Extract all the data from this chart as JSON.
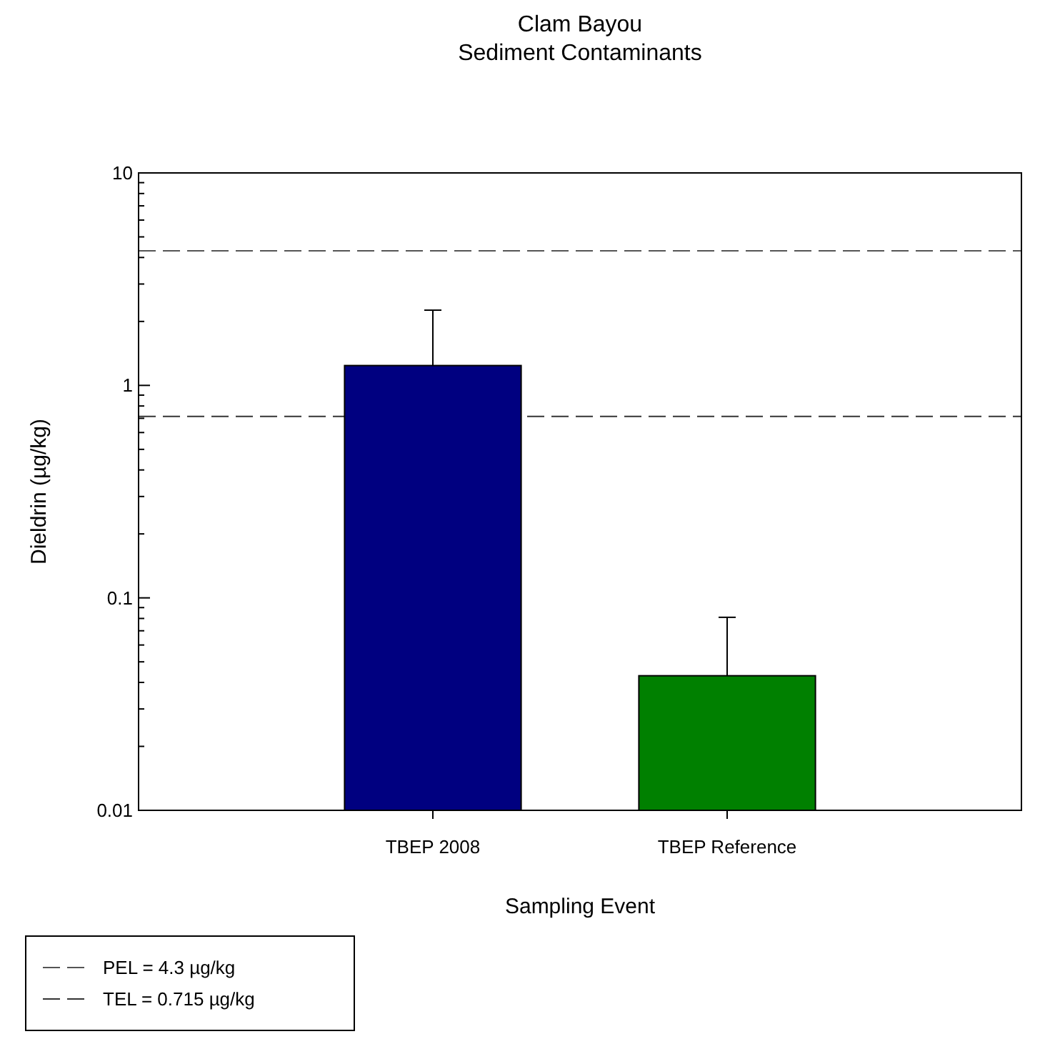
{
  "chart_data": {
    "type": "bar",
    "title": "Clam Bayou",
    "subtitle": "Sediment Contaminants",
    "xlabel": "Sampling Event",
    "ylabel": "Dieldrin (µg/kg)",
    "categories": [
      "TBEP 2008",
      "TBEP Reference"
    ],
    "values": [
      1.24,
      0.043
    ],
    "colors": [
      "#000080",
      "#008000"
    ],
    "errors": [
      [
        1.24,
        2.26
      ],
      [
        0.043,
        0.081
      ]
    ],
    "log": true,
    "ylim": [
      0.01,
      10
    ],
    "yticks": [
      0.01,
      {
        "value": 0.02,
        "label": null
      },
      {
        "value": 0.03,
        "label": null
      },
      {
        "value": 0.04,
        "label": null
      },
      {
        "value": 0.05,
        "label": null
      },
      {
        "value": 0.06,
        "label": null
      },
      {
        "value": 0.07,
        "label": null
      },
      {
        "value": 0.08,
        "label": null
      },
      {
        "value": 0.09,
        "label": null
      },
      0.1,
      {
        "value": 0.2,
        "label": null
      },
      {
        "value": 0.3,
        "label": null
      },
      {
        "value": 0.4,
        "label": null
      },
      {
        "value": 0.5,
        "label": null
      },
      {
        "value": 0.6,
        "label": null
      },
      {
        "value": 0.7,
        "label": null
      },
      {
        "value": 0.8,
        "label": null
      },
      {
        "value": 0.9,
        "label": null
      },
      1,
      {
        "value": 2,
        "label": null
      },
      {
        "value": 3,
        "label": null
      },
      {
        "value": 4,
        "label": null
      },
      {
        "value": 5,
        "label": null
      },
      {
        "value": 6,
        "label": null
      },
      {
        "value": 7,
        "label": null
      },
      {
        "value": 8,
        "label": null
      },
      {
        "value": 9,
        "label": null
      },
      10
    ],
    "ref_lines": [
      {
        "axis": "y",
        "value": 4.3,
        "label": "PEL = 4.3 µg/kg",
        "color": "#555555",
        "line_style": "dashed"
      },
      {
        "axis": "y",
        "value": 0.715,
        "label": "TEL = 0.715 µg/kg",
        "color": "#333333",
        "line_style": "dashed"
      }
    ],
    "legend": "bottom left",
    "grid": false
  }
}
